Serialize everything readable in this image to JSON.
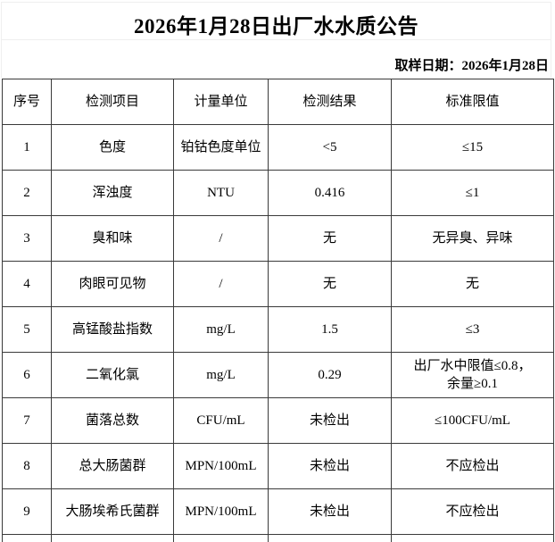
{
  "page": {
    "title": "2026年1月28日出厂水水质公告",
    "sampling_date": "取样日期：2026年1月28日"
  },
  "table": {
    "headers": {
      "no": "序号",
      "item": "检测项目",
      "unit": "计量单位",
      "result": "检测结果",
      "limit": "标准限值"
    },
    "rows": [
      {
        "no": "1",
        "item": "色度",
        "unit": "铂钴色度单位",
        "result": "<5",
        "limit": "≤15"
      },
      {
        "no": "2",
        "item": "浑浊度",
        "unit": "NTU",
        "result": "0.416",
        "limit": "≤1"
      },
      {
        "no": "3",
        "item": "臭和味",
        "unit": "/",
        "result": "无",
        "limit": "无异臭、异味"
      },
      {
        "no": "4",
        "item": "肉眼可见物",
        "unit": "/",
        "result": "无",
        "limit": "无"
      },
      {
        "no": "5",
        "item": "高锰酸盐指数",
        "unit": "mg/L",
        "result": "1.5",
        "limit": "≤3"
      },
      {
        "no": "6",
        "item": "二氧化氯",
        "unit": "mg/L",
        "result": "0.29",
        "limit": "出厂水中限值≤0.8，\n余量≥0.1"
      },
      {
        "no": "7",
        "item": "菌落总数",
        "unit": "CFU/mL",
        "result": "未检出",
        "limit": "≤100CFU/mL"
      },
      {
        "no": "8",
        "item": "总大肠菌群",
        "unit": "MPN/100mL",
        "result": "未检出",
        "limit": "不应检出"
      },
      {
        "no": "9",
        "item": "大肠埃希氏菌群",
        "unit": "MPN/100mL",
        "result": "未检出",
        "limit": "不应检出"
      }
    ]
  }
}
